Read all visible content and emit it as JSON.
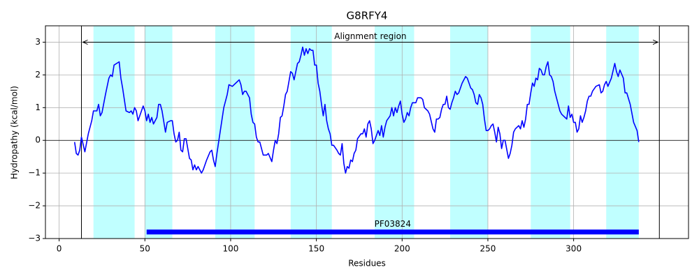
{
  "chart_data": {
    "type": "line",
    "title": "G8RFY4",
    "x_label": "Residues",
    "y_label": "Hydropathy (kcal/mol)",
    "x": [
      9,
      10,
      11,
      12,
      13,
      15,
      17,
      19,
      20,
      22,
      23,
      24,
      25,
      27,
      29,
      30,
      31,
      32,
      35,
      36,
      37,
      39,
      41,
      42,
      43,
      44,
      45,
      46,
      48,
      49,
      50,
      51,
      52,
      53,
      54,
      55,
      57,
      58,
      59,
      60,
      62,
      63,
      65,
      66,
      67,
      68,
      69,
      70,
      71,
      72,
      73,
      74,
      75,
      76,
      77,
      78,
      79,
      80,
      81,
      83,
      84,
      86,
      88,
      89,
      90,
      91,
      92,
      94,
      96,
      98,
      99,
      101,
      103,
      105,
      106,
      107,
      108,
      109,
      111,
      112,
      113,
      114,
      115,
      116,
      117,
      118,
      119,
      121,
      122,
      124,
      125,
      126,
      127,
      128,
      129,
      130,
      131,
      132,
      133,
      134,
      135,
      136,
      137,
      138,
      139,
      140,
      141,
      142,
      143,
      144,
      145,
      146,
      147,
      148,
      149,
      150,
      151,
      152,
      153,
      154,
      155,
      156,
      157,
      158,
      159,
      160,
      162,
      163,
      164,
      165,
      166,
      167,
      168,
      169,
      170,
      171,
      172,
      173,
      174,
      176,
      177,
      178,
      179,
      180,
      181,
      182,
      183,
      184,
      186,
      187,
      188,
      189,
      190,
      191,
      193,
      194,
      195,
      196,
      197,
      198,
      199,
      200,
      201,
      202,
      203,
      204,
      205,
      206,
      208,
      209,
      211,
      212,
      213,
      215,
      216,
      218,
      219,
      220,
      221,
      222,
      223,
      224,
      225,
      226,
      227,
      228,
      229,
      230,
      231,
      232,
      233,
      235,
      237,
      238,
      239,
      240,
      241,
      242,
      243,
      244,
      245,
      246,
      247,
      248,
      249,
      250,
      251,
      252,
      253,
      254,
      255,
      256,
      257,
      258,
      259,
      260,
      262,
      263,
      264,
      265,
      266,
      267,
      268,
      269,
      270,
      271,
      272,
      273,
      274,
      275,
      276,
      277,
      278,
      279,
      280,
      281,
      282,
      283,
      284,
      285,
      286,
      287,
      288,
      289,
      290,
      291,
      292,
      293,
      294,
      295,
      296,
      297,
      298,
      299,
      300,
      301,
      302,
      303,
      304,
      305,
      306,
      307,
      308,
      309,
      310,
      311,
      313,
      315,
      316,
      317,
      318,
      319,
      320,
      322,
      324,
      325,
      326,
      327,
      329,
      330,
      331,
      333,
      335,
      337,
      338
    ],
    "values": [
      -0.05,
      -0.4,
      -0.45,
      -0.3,
      0.1,
      -0.35,
      0.2,
      0.6,
      0.9,
      0.9,
      1.1,
      0.75,
      0.85,
      1.4,
      1.9,
      2.0,
      1.95,
      2.3,
      2.4,
      1.9,
      1.6,
      0.9,
      0.85,
      0.9,
      0.8,
      1.0,
      0.9,
      0.6,
      0.9,
      1.05,
      0.9,
      0.6,
      0.8,
      0.55,
      0.7,
      0.5,
      0.7,
      1.1,
      1.1,
      0.9,
      0.25,
      0.55,
      0.6,
      0.6,
      0.2,
      -0.05,
      0.0,
      0.25,
      -0.3,
      -0.35,
      0.05,
      0.05,
      -0.25,
      -0.55,
      -0.6,
      -0.9,
      -0.75,
      -0.9,
      -0.8,
      -1.0,
      -0.9,
      -0.6,
      -0.35,
      -0.3,
      -0.6,
      -0.8,
      -0.4,
      0.3,
      1.0,
      1.4,
      1.7,
      1.65,
      1.75,
      1.85,
      1.7,
      1.4,
      1.5,
      1.5,
      1.3,
      0.8,
      0.55,
      0.5,
      0.1,
      -0.05,
      -0.05,
      -0.25,
      -0.45,
      -0.45,
      -0.4,
      -0.65,
      -0.3,
      0.0,
      -0.1,
      0.2,
      0.7,
      0.75,
      1.05,
      1.4,
      1.5,
      1.8,
      2.1,
      2.05,
      1.85,
      2.1,
      2.35,
      2.4,
      2.6,
      2.85,
      2.6,
      2.8,
      2.65,
      2.8,
      2.75,
      2.75,
      2.3,
      2.3,
      1.75,
      1.5,
      1.1,
      0.75,
      1.1,
      0.6,
      0.35,
      0.2,
      -0.15,
      -0.15,
      -0.3,
      -0.4,
      -0.45,
      -0.1,
      -0.7,
      -1.0,
      -0.8,
      -0.85,
      -0.6,
      -0.65,
      -0.4,
      -0.3,
      0.05,
      0.2,
      0.2,
      0.35,
      0.1,
      0.5,
      0.6,
      0.35,
      -0.1,
      0.0,
      0.3,
      0.15,
      0.45,
      0.1,
      0.4,
      0.6,
      0.75,
      1.0,
      0.75,
      1.0,
      0.85,
      1.05,
      1.2,
      0.8,
      0.55,
      0.65,
      0.85,
      0.75,
      1.0,
      1.15,
      1.15,
      1.3,
      1.3,
      1.25,
      1.0,
      0.9,
      0.8,
      0.35,
      0.25,
      0.65,
      0.65,
      0.7,
      0.95,
      1.1,
      1.1,
      1.35,
      1.0,
      0.95,
      1.15,
      1.3,
      1.5,
      1.4,
      1.45,
      1.75,
      1.95,
      1.9,
      1.75,
      1.6,
      1.55,
      1.4,
      1.15,
      1.1,
      1.4,
      1.3,
      1.1,
      0.65,
      0.3,
      0.3,
      0.35,
      0.45,
      0.5,
      0.25,
      -0.05,
      0.4,
      0.2,
      -0.25,
      0.0,
      0.0,
      -0.55,
      -0.4,
      -0.15,
      0.25,
      0.35,
      0.4,
      0.45,
      0.35,
      0.6,
      0.4,
      0.65,
      1.1,
      1.1,
      1.45,
      1.75,
      1.65,
      1.9,
      1.85,
      2.2,
      2.15,
      2.0,
      2.0,
      2.25,
      2.4,
      2.0,
      1.95,
      1.8,
      1.5,
      1.3,
      1.1,
      0.9,
      0.8,
      0.75,
      0.7,
      0.65,
      1.05,
      0.7,
      0.8,
      0.55,
      0.55,
      0.25,
      0.35,
      0.75,
      0.55,
      0.7,
      0.9,
      1.2,
      1.35,
      1.35,
      1.5,
      1.65,
      1.7,
      1.45,
      1.5,
      1.7,
      1.8,
      1.65,
      1.9,
      2.35,
      2.1,
      1.95,
      2.15,
      1.9,
      1.45,
      1.45,
      1.1,
      0.55,
      0.3,
      -0.05
    ],
    "line_color": "#0000ff",
    "highlight_regions": [
      {
        "start": 20,
        "end": 44
      },
      {
        "start": 50,
        "end": 66
      },
      {
        "start": 91,
        "end": 114
      },
      {
        "start": 135,
        "end": 159
      },
      {
        "start": 184,
        "end": 207
      },
      {
        "start": 228,
        "end": 250
      },
      {
        "start": 275,
        "end": 298
      },
      {
        "start": 319,
        "end": 338
      }
    ],
    "highlight_color": "#c0ffff",
    "vlines": [
      13,
      350
    ],
    "annotation": {
      "text": "Alignment region",
      "start": 13,
      "end": 350,
      "y": 3
    },
    "domain": {
      "label": "PF03824",
      "start": 51,
      "end": 338,
      "y": -2.8,
      "color": "#0000ff"
    },
    "xlim": [
      -8,
      367
    ],
    "ylim": [
      -3,
      3.5
    ],
    "xticks": [
      0,
      50,
      100,
      150,
      200,
      250,
      300
    ],
    "yticks": [
      {
        "value": -3,
        "label": "−3"
      },
      {
        "value": -2,
        "label": "−2"
      },
      {
        "value": -1,
        "label": "−1"
      },
      0,
      1,
      2,
      3
    ],
    "grid": true,
    "zero_line": true
  }
}
